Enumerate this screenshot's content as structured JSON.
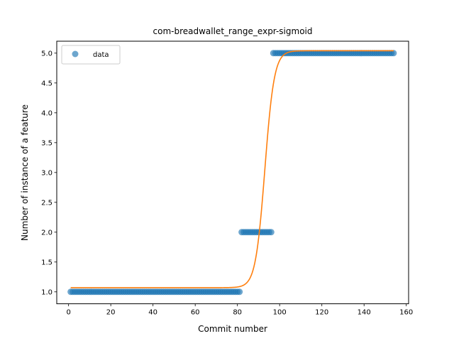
{
  "chart_data": {
    "type": "scatter",
    "title": "com-breadwallet_range_expr-sigmoid",
    "xlabel": "Commit number",
    "ylabel": "Number of instance of a feature",
    "xlim": [
      -5.6,
      161.1
    ],
    "ylim": [
      0.8,
      5.2
    ],
    "xticks": [
      0,
      20,
      40,
      60,
      80,
      100,
      120,
      140,
      160
    ],
    "yticks": [
      1.0,
      1.5,
      2.0,
      2.5,
      3.0,
      3.5,
      4.0,
      4.5,
      5.0
    ],
    "grid": false,
    "legend": {
      "position": "top-left",
      "entries": [
        "data"
      ]
    },
    "series": [
      {
        "name": "data",
        "kind": "scatter",
        "color": "#1f77b4",
        "points_runs": [
          {
            "x_from": 1,
            "x_to": 81,
            "y": 1.0
          },
          {
            "x_from": 82,
            "x_to": 96,
            "y": 2.0
          },
          {
            "x_from": 97,
            "x_to": 154,
            "y": 5.0
          }
        ]
      },
      {
        "kind": "line",
        "color": "#ff7f0e",
        "function": "sigmoid",
        "x_range": [
          1,
          154
        ],
        "params": {
          "lower": 1.07,
          "upper": 5.04,
          "midpoint": 93.0,
          "steepness": 0.45
        }
      }
    ]
  }
}
